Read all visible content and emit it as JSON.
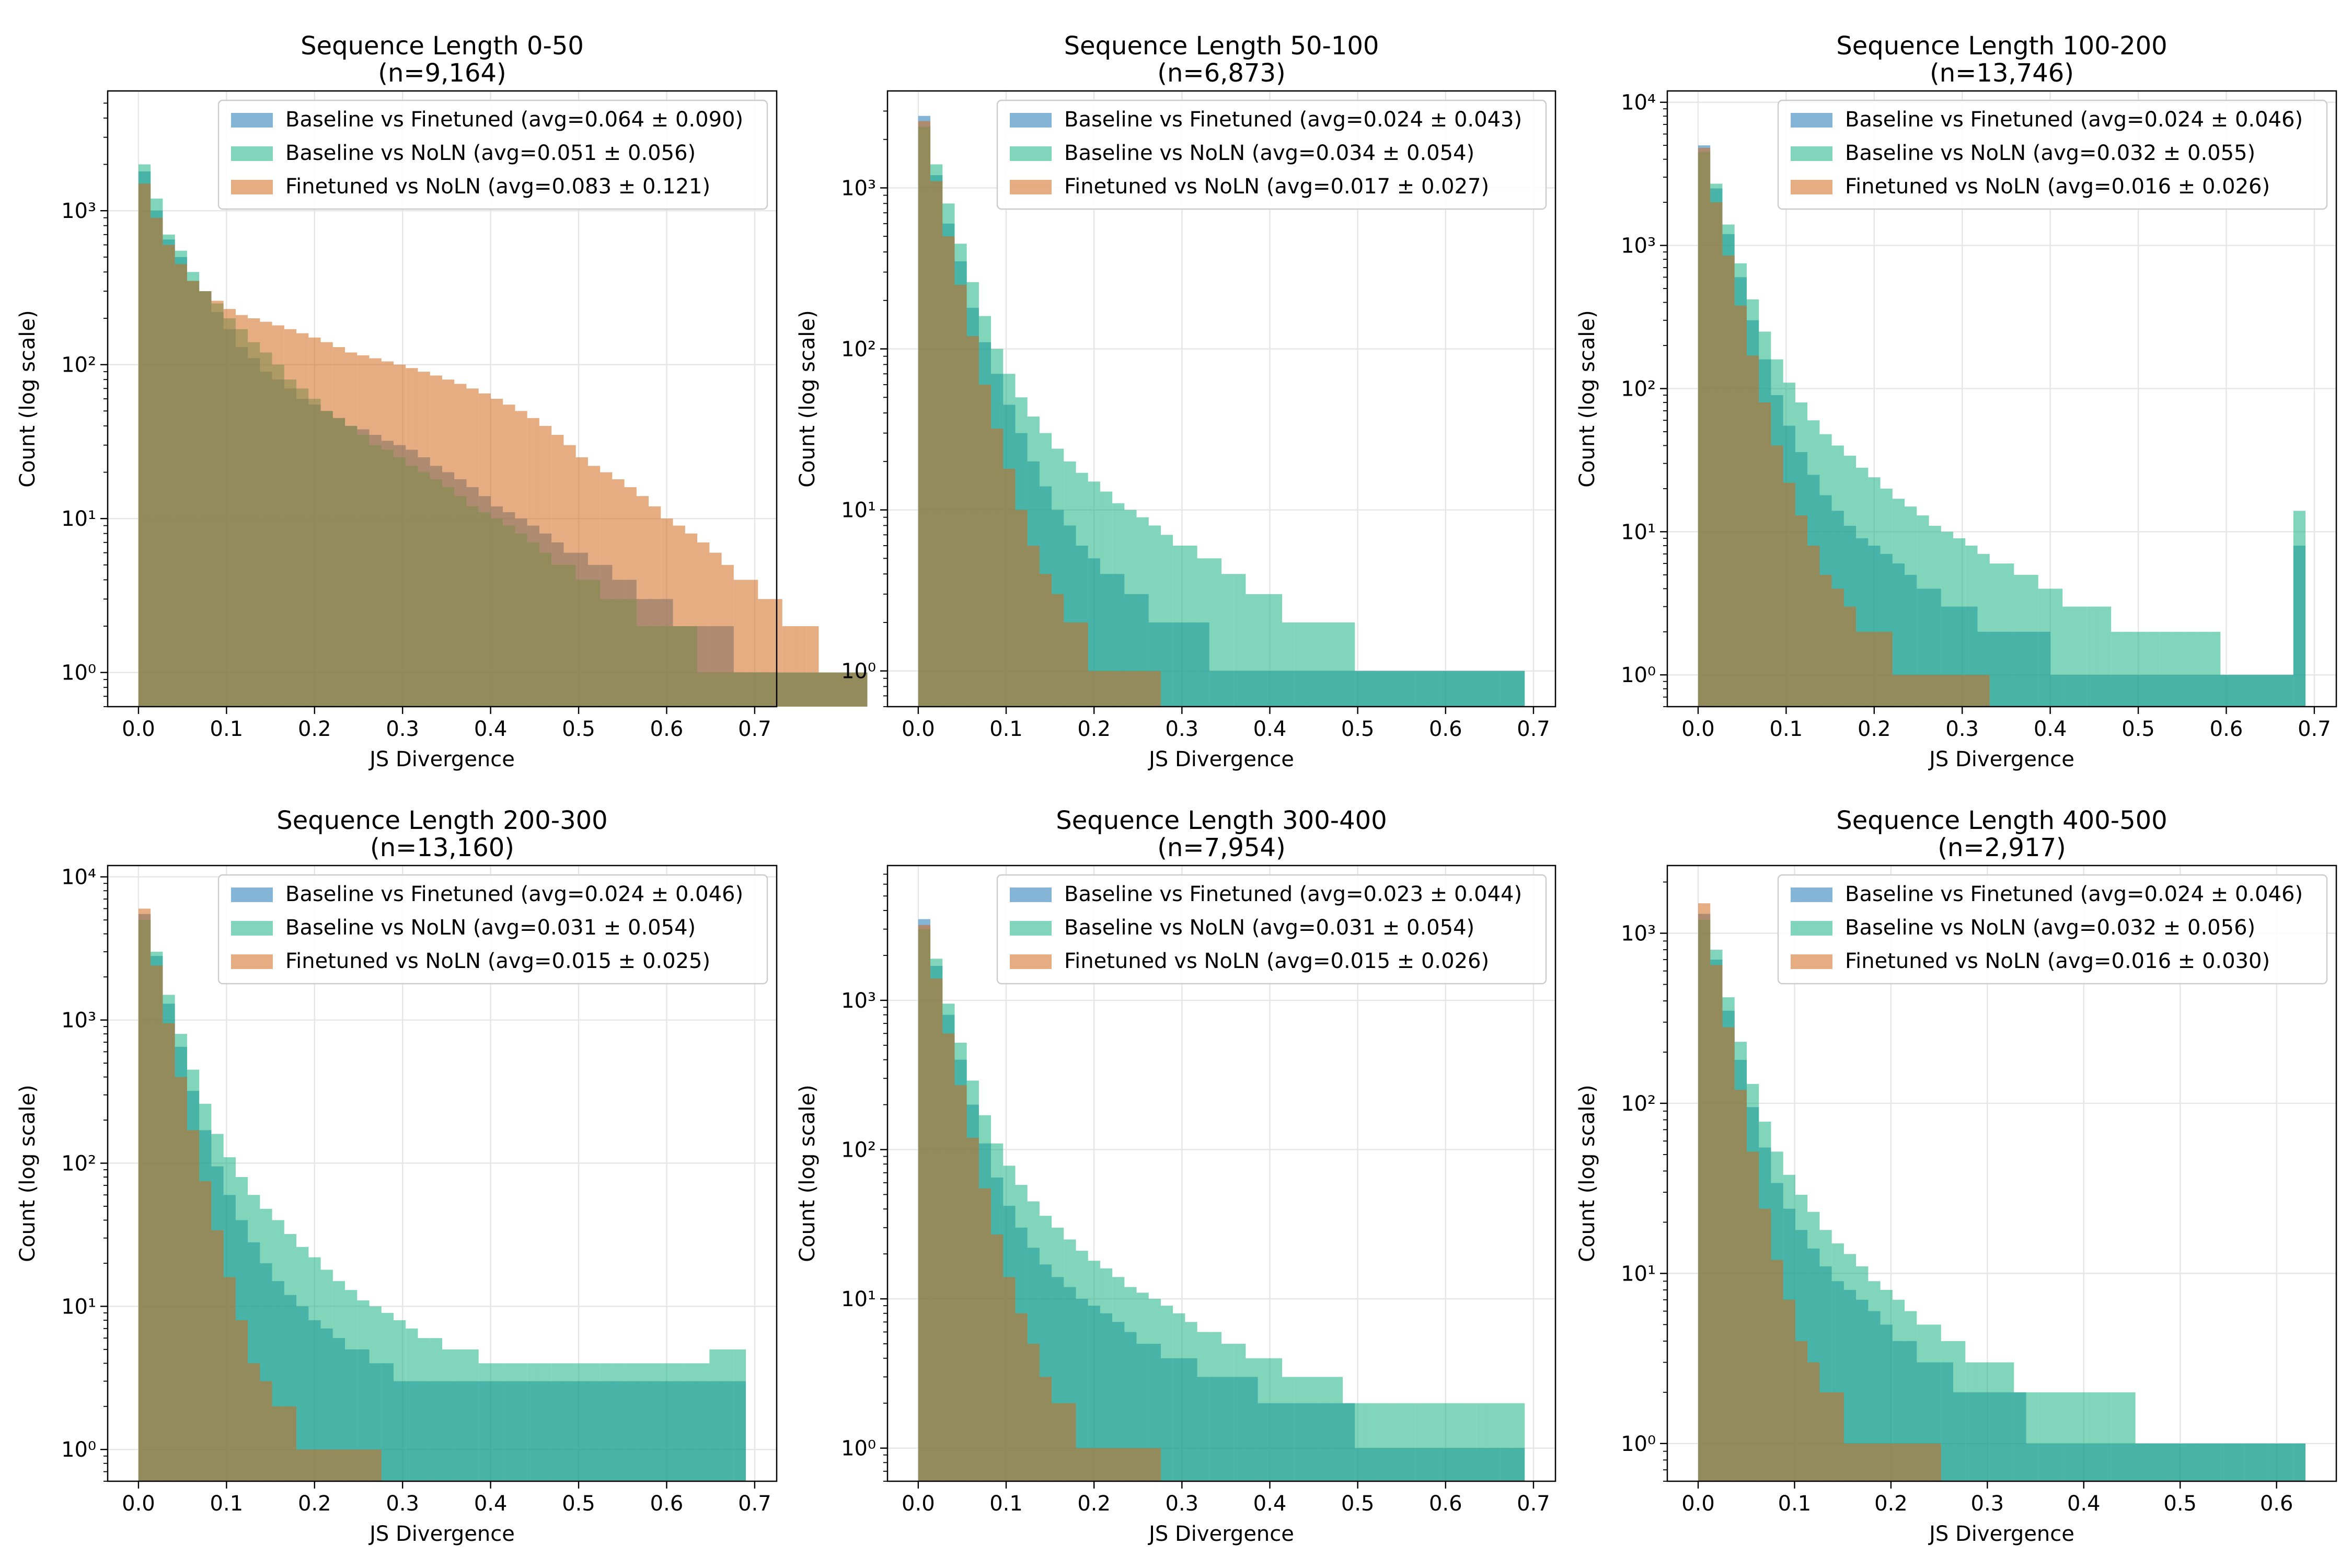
{
  "colors": {
    "Baseline vs Finetuned": "#1f77b4",
    "Baseline vs NoLN": "#17b382",
    "Finetuned vs NoLN": "#d2691e",
    "grid": "#e6e6e6",
    "axes": "#000000"
  },
  "chart_data": [
    {
      "type": "bar",
      "title": "Sequence Length 0-50",
      "subtitle": "(n=9,164)",
      "xlabel": "JS Divergence",
      "ylabel": "Count (log scale)",
      "xlim": [
        -0.035,
        0.725
      ],
      "ylim": [
        0.6,
        6000
      ],
      "yscale": "log",
      "grid": true,
      "legend": "top-right",
      "xticks": [
        "0.0",
        "0.1",
        "0.2",
        "0.3",
        "0.4",
        "0.5",
        "0.6",
        "0.7"
      ],
      "yticks": [
        1,
        10,
        100,
        1000
      ],
      "ytick_labels": [
        "10⁰",
        "10¹",
        "10²",
        "10³"
      ],
      "bin_width": 0.0138,
      "series": [
        {
          "name": "Baseline vs Finetuned (avg=0.064 ± 0.090)",
          "values": [
            1800,
            1000,
            650,
            500,
            350,
            300,
            220,
            170,
            130,
            110,
            90,
            80,
            70,
            60,
            55,
            50,
            45,
            40,
            38,
            35,
            32,
            30,
            28,
            25,
            22,
            20,
            18,
            16,
            14,
            12,
            11,
            10,
            9,
            8,
            7,
            6,
            6,
            5,
            5,
            4,
            4,
            3,
            3,
            3,
            2,
            2,
            2,
            2,
            2,
            1,
            1,
            1,
            1,
            1,
            1,
            1,
            1,
            1,
            1,
            1
          ]
        },
        {
          "name": "Baseline vs NoLN (avg=0.051 ± 0.056)",
          "values": [
            2000,
            1200,
            700,
            550,
            400,
            300,
            250,
            200,
            170,
            140,
            120,
            100,
            80,
            70,
            60,
            50,
            45,
            40,
            35,
            30,
            28,
            25,
            22,
            20,
            18,
            16,
            14,
            12,
            11,
            10,
            9,
            8,
            7,
            6,
            5,
            5,
            4,
            4,
            3,
            3,
            3,
            2,
            2,
            2,
            2,
            2,
            1,
            1,
            1,
            1,
            1,
            1,
            1,
            1,
            1,
            1,
            1,
            1,
            1,
            1
          ]
        },
        {
          "name": "Finetuned vs NoLN (avg=0.083 ± 0.121)",
          "values": [
            1500,
            900,
            600,
            450,
            350,
            300,
            260,
            230,
            210,
            200,
            190,
            180,
            170,
            160,
            150,
            140,
            130,
            120,
            115,
            110,
            105,
            100,
            95,
            90,
            85,
            80,
            75,
            70,
            65,
            60,
            55,
            50,
            45,
            40,
            35,
            30,
            25,
            22,
            20,
            18,
            16,
            14,
            12,
            10,
            9,
            8,
            7,
            6,
            5,
            4,
            4,
            3,
            3,
            2,
            2,
            2,
            1,
            1,
            1,
            1
          ]
        }
      ]
    },
    {
      "type": "bar",
      "title": "Sequence Length 50-100",
      "subtitle": "(n=6,873)",
      "xlabel": "JS Divergence",
      "ylabel": "Count (log scale)",
      "xlim": [
        -0.035,
        0.725
      ],
      "ylim": [
        0.6,
        4000
      ],
      "yscale": "log",
      "grid": true,
      "legend": "top-right",
      "xticks": [
        "0.0",
        "0.1",
        "0.2",
        "0.3",
        "0.4",
        "0.5",
        "0.6",
        "0.7"
      ],
      "yticks": [
        1,
        10,
        100,
        1000
      ],
      "ytick_labels": [
        "10⁰",
        "10¹",
        "10²",
        "10³"
      ],
      "bin_width": 0.0138,
      "series": [
        {
          "name": "Baseline vs Finetuned (avg=0.024 ± 0.043)",
          "values": [
            2800,
            1200,
            600,
            350,
            180,
            110,
            70,
            45,
            30,
            20,
            14,
            10,
            8,
            6,
            5,
            4,
            4,
            3,
            3,
            2,
            2,
            2,
            2,
            2,
            1,
            1,
            1,
            1,
            1,
            1,
            1,
            1,
            1,
            1,
            1,
            1,
            1,
            1,
            1,
            1,
            1,
            1,
            1,
            1,
            1,
            1,
            1,
            1,
            1,
            1
          ]
        },
        {
          "name": "Baseline vs NoLN (avg=0.034 ± 0.054)",
          "values": [
            2400,
            1400,
            800,
            450,
            260,
            160,
            100,
            70,
            50,
            38,
            30,
            24,
            20,
            17,
            15,
            13,
            11,
            10,
            9,
            8,
            7,
            6,
            6,
            5,
            5,
            4,
            4,
            3,
            3,
            3,
            2,
            2,
            2,
            2,
            2,
            2,
            1,
            1,
            1,
            1,
            1,
            1,
            1,
            1,
            1,
            1,
            1,
            1,
            1,
            1
          ]
        },
        {
          "name": "Finetuned vs NoLN (avg=0.017 ± 0.027)",
          "values": [
            2600,
            1100,
            500,
            250,
            120,
            60,
            32,
            18,
            10,
            6,
            4,
            3,
            2,
            2,
            1,
            1,
            1,
            1,
            1,
            1
          ]
        }
      ]
    },
    {
      "type": "bar",
      "title": "Sequence Length 100-200",
      "subtitle": "(n=13,746)",
      "xlabel": "JS Divergence",
      "ylabel": "Count (log scale)",
      "xlim": [
        -0.035,
        0.725
      ],
      "ylim": [
        0.6,
        12000
      ],
      "yscale": "log",
      "grid": true,
      "legend": "top-right",
      "xticks": [
        "0.0",
        "0.1",
        "0.2",
        "0.3",
        "0.4",
        "0.5",
        "0.6",
        "0.7"
      ],
      "yticks": [
        1,
        10,
        100,
        1000,
        10000
      ],
      "ytick_labels": [
        "10⁰",
        "10¹",
        "10²",
        "10³",
        "10⁴"
      ],
      "bin_width": 0.0138,
      "series": [
        {
          "name": "Baseline vs Finetuned (avg=0.024 ± 0.046)",
          "values": [
            5000,
            2500,
            1200,
            600,
            300,
            160,
            90,
            55,
            36,
            25,
            18,
            14,
            11,
            9,
            8,
            7,
            6,
            5,
            4,
            4,
            3,
            3,
            3,
            2,
            2,
            2,
            2,
            2,
            2,
            1,
            1,
            1,
            1,
            1,
            1,
            1,
            1,
            1,
            1,
            1,
            1,
            1,
            1,
            1,
            1,
            1,
            1,
            1,
            1,
            8
          ]
        },
        {
          "name": "Baseline vs NoLN (avg=0.032 ± 0.055)",
          "values": [
            4500,
            2700,
            1400,
            750,
            420,
            250,
            160,
            110,
            80,
            60,
            48,
            40,
            34,
            28,
            24,
            20,
            17,
            15,
            13,
            11,
            10,
            9,
            8,
            7,
            6,
            6,
            5,
            5,
            4,
            4,
            3,
            3,
            3,
            3,
            2,
            2,
            2,
            2,
            2,
            2,
            2,
            2,
            2,
            1,
            1,
            1,
            1,
            1,
            1,
            14
          ]
        },
        {
          "name": "Finetuned vs NoLN (avg=0.016 ± 0.026)",
          "values": [
            4800,
            2000,
            850,
            380,
            170,
            80,
            40,
            22,
            13,
            8,
            5,
            4,
            3,
            2,
            2,
            2,
            1,
            1,
            1,
            1,
            1,
            1,
            1,
            1
          ]
        }
      ]
    },
    {
      "type": "bar",
      "title": "Sequence Length 200-300",
      "subtitle": "(n=13,160)",
      "xlabel": "JS Divergence",
      "ylabel": "Count (log scale)",
      "xlim": [
        -0.035,
        0.725
      ],
      "ylim": [
        0.6,
        12000
      ],
      "yscale": "log",
      "grid": true,
      "legend": "top-right",
      "xticks": [
        "0.0",
        "0.1",
        "0.2",
        "0.3",
        "0.4",
        "0.5",
        "0.6",
        "0.7"
      ],
      "yticks": [
        1,
        10,
        100,
        1000,
        10000
      ],
      "ytick_labels": [
        "10⁰",
        "10¹",
        "10²",
        "10³",
        "10⁴"
      ],
      "bin_width": 0.0138,
      "series": [
        {
          "name": "Baseline vs Finetuned (avg=0.024 ± 0.046)",
          "values": [
            5500,
            2800,
            1300,
            650,
            320,
            170,
            95,
            60,
            40,
            28,
            20,
            15,
            12,
            10,
            8,
            7,
            6,
            5,
            5,
            4,
            4,
            3,
            3,
            3,
            3,
            3,
            3,
            3,
            3,
            3,
            3,
            3,
            3,
            3,
            3,
            3,
            3,
            3,
            3,
            3,
            3,
            3,
            3,
            3,
            3,
            3,
            3,
            3,
            3,
            3
          ]
        },
        {
          "name": "Baseline vs NoLN (avg=0.031 ± 0.054)",
          "values": [
            5000,
            3000,
            1500,
            800,
            450,
            260,
            160,
            110,
            80,
            60,
            48,
            40,
            32,
            26,
            22,
            18,
            15,
            13,
            11,
            10,
            9,
            8,
            7,
            6,
            6,
            5,
            5,
            5,
            4,
            4,
            4,
            4,
            4,
            4,
            4,
            4,
            4,
            4,
            4,
            4,
            4,
            4,
            4,
            4,
            4,
            4,
            4,
            5,
            5,
            5
          ]
        },
        {
          "name": "Finetuned vs NoLN (avg=0.015 ± 0.025)",
          "values": [
            6000,
            2400,
            950,
            400,
            170,
            75,
            34,
            16,
            8,
            4,
            3,
            2,
            2,
            1,
            1,
            1,
            1,
            1,
            1,
            1
          ]
        }
      ]
    },
    {
      "type": "bar",
      "title": "Sequence Length 300-400",
      "subtitle": "(n=7,954)",
      "xlabel": "JS Divergence",
      "ylabel": "Count (log scale)",
      "xlim": [
        -0.035,
        0.725
      ],
      "ylim": [
        0.6,
        8000
      ],
      "yscale": "log",
      "grid": true,
      "legend": "top-right",
      "xticks": [
        "0.0",
        "0.1",
        "0.2",
        "0.3",
        "0.4",
        "0.5",
        "0.6",
        "0.7"
      ],
      "yticks": [
        1,
        10,
        100,
        1000
      ],
      "ytick_labels": [
        "10⁰",
        "10¹",
        "10²",
        "10³"
      ],
      "bin_width": 0.0138,
      "series": [
        {
          "name": "Baseline vs Finetuned (avg=0.023 ± 0.044)",
          "values": [
            3500,
            1700,
            800,
            400,
            200,
            110,
            65,
            42,
            30,
            22,
            17,
            14,
            12,
            10,
            9,
            8,
            7,
            6,
            5,
            5,
            4,
            4,
            4,
            3,
            3,
            3,
            3,
            3,
            2,
            2,
            2,
            2,
            2,
            2,
            2,
            2,
            1,
            1,
            1,
            1,
            1,
            1,
            1,
            1,
            1,
            1,
            1,
            1,
            1,
            1
          ]
        },
        {
          "name": "Baseline vs NoLN (avg=0.031 ± 0.054)",
          "values": [
            3000,
            1900,
            950,
            520,
            290,
            170,
            110,
            78,
            58,
            45,
            36,
            30,
            25,
            21,
            18,
            16,
            14,
            12,
            11,
            10,
            9,
            8,
            7,
            6,
            6,
            5,
            5,
            4,
            4,
            4,
            3,
            3,
            3,
            3,
            3,
            2,
            2,
            2,
            2,
            2,
            2,
            2,
            2,
            2,
            2,
            2,
            2,
            2,
            2,
            2
          ]
        },
        {
          "name": "Finetuned vs NoLN (avg=0.015 ± 0.026)",
          "values": [
            3200,
            1400,
            600,
            270,
            120,
            55,
            27,
            14,
            8,
            5,
            3,
            2,
            2,
            1,
            1,
            1,
            1,
            1,
            1,
            1
          ]
        }
      ]
    },
    {
      "type": "bar",
      "title": "Sequence Length 400-500",
      "subtitle": "(n=2,917)",
      "xlabel": "JS Divergence",
      "ylabel": "Count (log scale)",
      "xlim": [
        -0.032,
        0.662
      ],
      "ylim": [
        0.6,
        2500
      ],
      "yscale": "log",
      "grid": true,
      "legend": "top-right",
      "xticks": [
        "0.0",
        "0.1",
        "0.2",
        "0.3",
        "0.4",
        "0.5",
        "0.6"
      ],
      "yticks": [
        1,
        10,
        100,
        1000
      ],
      "ytick_labels": [
        "10⁰",
        "10¹",
        "10²",
        "10³"
      ],
      "bin_width": 0.0126,
      "series": [
        {
          "name": "Baseline vs Finetuned (avg=0.024 ± 0.046)",
          "values": [
            1300,
            700,
            350,
            180,
            95,
            55,
            34,
            24,
            18,
            14,
            11,
            9,
            8,
            7,
            6,
            5,
            4,
            4,
            3,
            3,
            3,
            2,
            2,
            2,
            2,
            2,
            2,
            1,
            1,
            1,
            1,
            1,
            1,
            1,
            1,
            1,
            1,
            1,
            1,
            1,
            1,
            1,
            1,
            1,
            1,
            1,
            1,
            1,
            1,
            1
          ]
        },
        {
          "name": "Baseline vs NoLN (avg=0.032 ± 0.056)",
          "values": [
            1200,
            800,
            420,
            230,
            130,
            78,
            52,
            38,
            29,
            23,
            18,
            15,
            13,
            11,
            9,
            8,
            7,
            6,
            5,
            5,
            4,
            4,
            3,
            3,
            3,
            3,
            2,
            2,
            2,
            2,
            2,
            2,
            2,
            2,
            2,
            2,
            1,
            1,
            1,
            1,
            1,
            1,
            1,
            1,
            1,
            1,
            1,
            1,
            1,
            1
          ]
        },
        {
          "name": "Finetuned vs NoLN (avg=0.016 ± 0.030)",
          "values": [
            1500,
            650,
            280,
            120,
            52,
            24,
            12,
            7,
            4,
            3,
            2,
            2,
            1,
            1,
            1,
            1,
            1,
            1,
            1,
            1
          ]
        }
      ]
    }
  ]
}
